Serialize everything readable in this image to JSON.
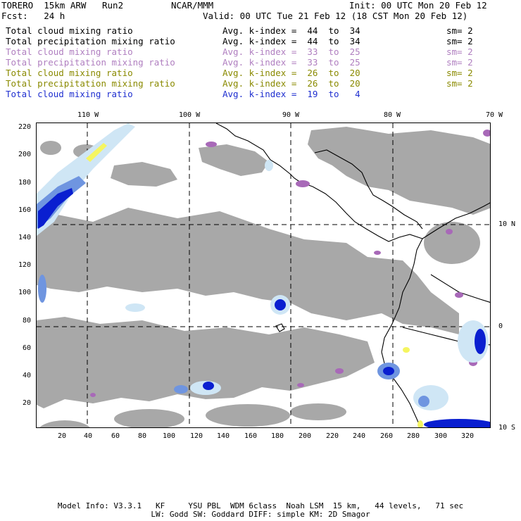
{
  "header": {
    "model": "TORERO  15km ARW   Run2",
    "org": "NCAR/MMM",
    "init": "Init: 00 UTC Mon 20 Feb 12",
    "fcst": "Fcst:   24 h",
    "valid": "Valid: 00 UTC Tue 21 Feb 12 (18 CST Mon 20 Feb 12)"
  },
  "legend": [
    {
      "field": "Total cloud mixing ratio",
      "kindex": "Avg. k-index =  44  to  34",
      "sm": "sm= 2",
      "color": "#000000"
    },
    {
      "field": "Total precipitation mixing ratio",
      "kindex": "Avg. k-index =  44  to  34",
      "sm": "sm= 2",
      "color": "#000000"
    },
    {
      "field": "Total cloud mixing ratio",
      "kindex": "Avg. k-index =  33  to  25",
      "sm": "sm= 2",
      "color": "#b07fc0"
    },
    {
      "field": "Total precipitation mixing ratio",
      "kindex": "Avg. k-index =  33  to  25",
      "sm": "sm= 2",
      "color": "#b07fc0"
    },
    {
      "field": "Total cloud mixing ratio",
      "kindex": "Avg. k-index =  26  to  20",
      "sm": "sm= 2",
      "color": "#8a8a00"
    },
    {
      "field": "Total precipitation mixing ratio",
      "kindex": "Avg. k-index =  26  to  20",
      "sm": "sm= 2",
      "color": "#8a8a00"
    },
    {
      "field": "Total cloud mixing ratio",
      "kindex": "Avg. k-index =  19  to   4",
      "sm": "",
      "color": "#1f2fd0"
    }
  ],
  "map": {
    "lon_labels": [
      "110 W",
      "100 W",
      "90 W",
      "80 W",
      "70 W"
    ],
    "lat_labels": [
      "10 N",
      "0",
      "10 S"
    ],
    "grid_x_labels": [
      "20",
      "40",
      "60",
      "80",
      "100",
      "120",
      "140",
      "160",
      "180",
      "200",
      "220",
      "240",
      "260",
      "280",
      "300",
      "320"
    ],
    "grid_y_labels": [
      "220",
      "200",
      "180",
      "160",
      "140",
      "120",
      "100",
      "80",
      "60",
      "40",
      "20"
    ],
    "colors": {
      "cloud_gray": "#a8a8a8",
      "purple": "#a869b8",
      "light_blue": "#cfe6f5",
      "mid_blue": "#6f95e0",
      "dark_blue": "#0a1fd0",
      "yellow": "#f5f560",
      "coast": "#000000"
    }
  },
  "footer": {
    "line1": "Model Info: V3.3.1   KF     YSU PBL  WDM 6class  Noah LSM  15 km,   44 levels,   71 sec",
    "line2": "LW: Godd SW: Goddard DIFF: simple KM: 2D Smagor"
  }
}
